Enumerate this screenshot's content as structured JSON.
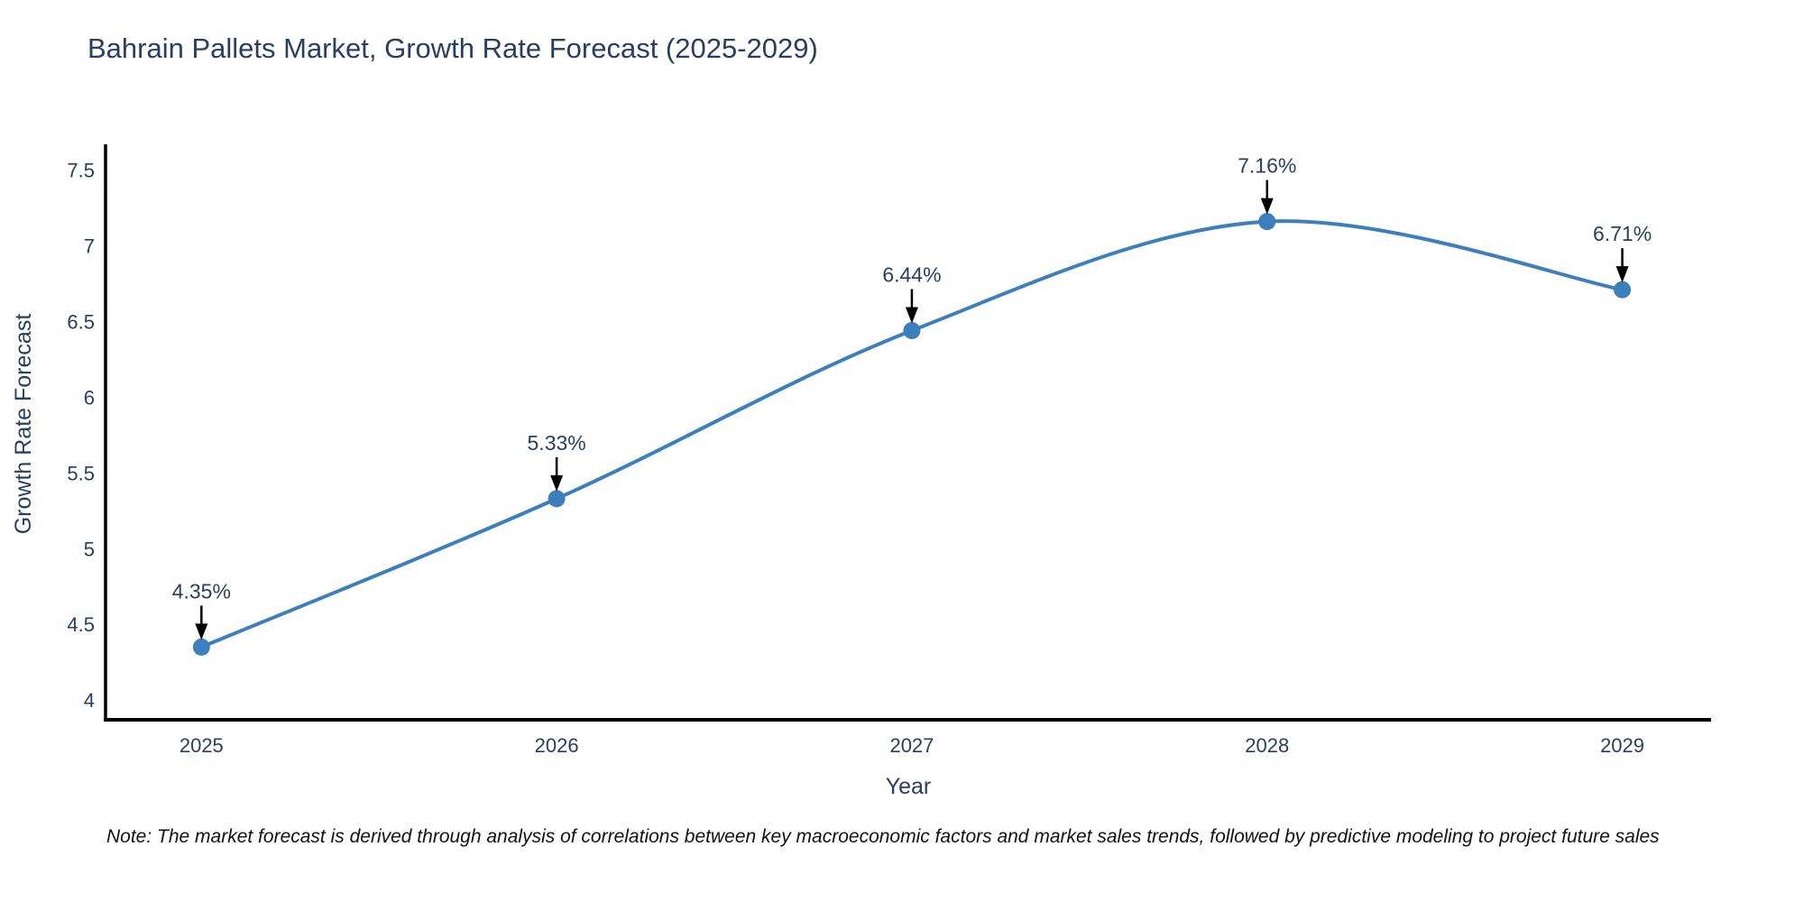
{
  "note": "Note: The market forecast is derived through analysis of correlations between key macroeconomic factors and market sales trends, followed by predictive modeling to project future sales",
  "chart_data": {
    "type": "line",
    "title": "Bahrain Pallets Market, Growth Rate Forecast (2025-2029)",
    "x": [
      2025,
      2026,
      2027,
      2028,
      2029
    ],
    "values": [
      4.35,
      5.33,
      6.44,
      7.16,
      6.71
    ],
    "point_labels": [
      "4.35%",
      "5.33%",
      "6.44%",
      "7.16%",
      "6.71%"
    ],
    "xlabel": "Year",
    "ylabel": "Growth Rate Forecast",
    "xticks": [
      "2025",
      "2026",
      "2027",
      "2028",
      "2029"
    ],
    "yticks": [
      4,
      4.5,
      5,
      5.5,
      6,
      6.5,
      7,
      7.5
    ],
    "xlim": [
      2024.73,
      2029.25
    ],
    "ylim": [
      3.87,
      7.67
    ],
    "line_shape": "spline",
    "grid": false,
    "legend": "none",
    "colors": {
      "line": "#3d7ebd",
      "marker": "#3d7ebd",
      "axis_line": "#000000",
      "tick_text": "#2a3f5f",
      "title_text": "#2a3f5f",
      "annotation_text": "#2a3f5f",
      "arrow": "#000000",
      "background": "#ffffff"
    }
  }
}
